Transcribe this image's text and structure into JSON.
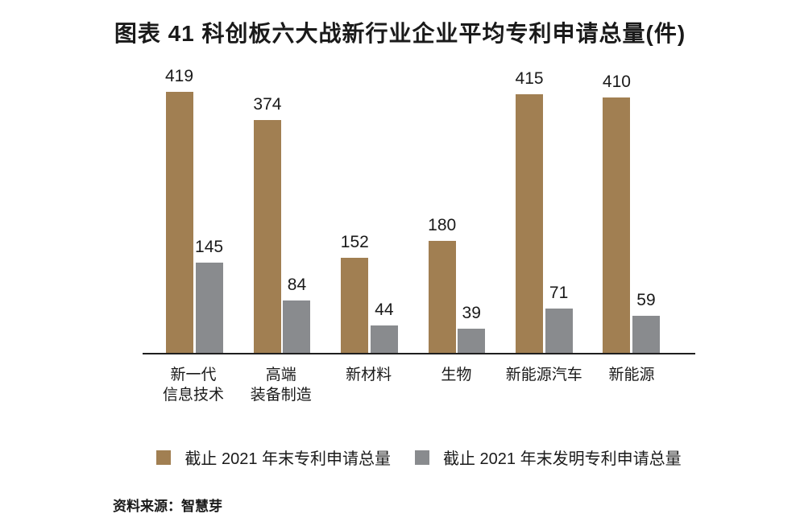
{
  "title": "图表 41  科创板六大战新行业企业平均专利申请总量(件)",
  "source": "资料来源：智慧芽",
  "colors": {
    "series_total": "#A17F52",
    "series_invention": "#898B8E",
    "axis": "#1f1f1f",
    "text": "#1a1a1a"
  },
  "legend": [
    {
      "label": "截止 2021 年末专利申请总量",
      "color": "#A17F52"
    },
    {
      "label": "截止 2021 年末发明专利申请总量",
      "color": "#898B8E"
    }
  ],
  "chart_data": {
    "type": "bar",
    "title": "图表 41  科创板六大战新行业企业平均专利申请总量(件)",
    "categories": [
      "新一代信息技术",
      "高端装备制造",
      "新材料",
      "生物",
      "新能源汽车",
      "新能源"
    ],
    "category_lines": [
      [
        "新一代",
        "信息技术"
      ],
      [
        "高端",
        "装备制造"
      ],
      [
        "新材料"
      ],
      [
        "生物"
      ],
      [
        "新能源汽车"
      ],
      [
        "新能源"
      ]
    ],
    "series": [
      {
        "name": "截止 2021 年末专利申请总量",
        "color": "#A17F52",
        "values": [
          419,
          374,
          152,
          180,
          415,
          410
        ]
      },
      {
        "name": "截止 2021 年末发明专利申请总量",
        "color": "#898B8E",
        "values": [
          145,
          84,
          44,
          39,
          71,
          59
        ]
      }
    ],
    "xlabel": "",
    "ylabel": "",
    "ylim": [
      0,
      440
    ],
    "grid": false,
    "data_labels": true,
    "legend_position": "bottom"
  }
}
